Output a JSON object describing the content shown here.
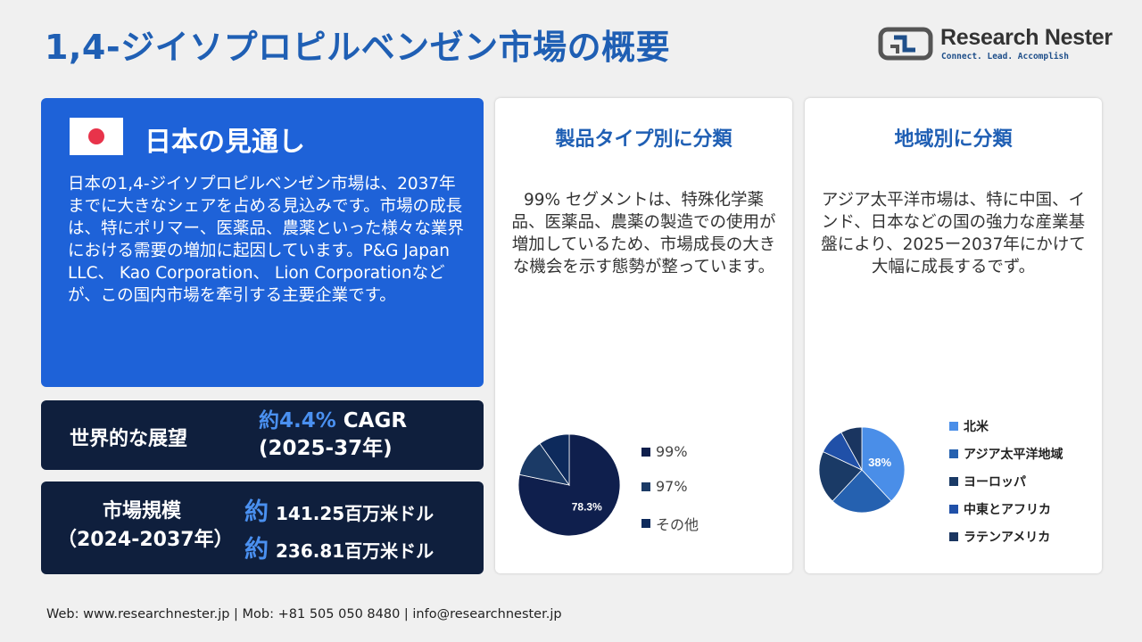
{
  "header": {
    "title": "1,4-ジイソプロピルベンゼン市場の概要",
    "logo_name": "Research Nester",
    "logo_tagline": "Connect. Lead. Accomplish"
  },
  "outlook": {
    "title": "日本の見通し",
    "text": "日本の1,4-ジイソプロピルベンゼン市場は、2037年までに大きなシェアを占める見込みです。市場の成長は、特にポリマー、医薬品、農薬といった様々な業界における需要の増加に起因しています。P&G Japan LLC、 Kao Corporation、 Lion Corporationなどが、この国内市場を牽引する主要企業です。"
  },
  "growth": {
    "label": "世界的な展望",
    "prefix": "約",
    "cagr": "4.4%",
    "cagr_suffix": " CAGR",
    "period": "(2025-37年)"
  },
  "market_size": {
    "label_line1": "市場規模",
    "label_line2": "（2024-2037年）",
    "approx": "約",
    "value_2024": "141.25百万米ドル",
    "value_2037": "236.81百万米ドル"
  },
  "segment": {
    "title": "製品タイプ別に分類",
    "text": "99% セグメントは、特殊化学薬品、医薬品、農薬の製造での使用が増加しているため、市場成長の大きな機会を示す態勢が整っています。"
  },
  "region": {
    "title": "地域別に分類",
    "text": "アジア太平洋市場は、特に中国、インド、日本などの国の強力な産業基盤により、2025ー2037年にかけて大幅に成長するでず。"
  },
  "chart_data": [
    {
      "type": "pie",
      "categories": [
        "99%",
        "97%",
        "その他"
      ],
      "values": [
        78.3,
        11.9,
        9.8
      ],
      "data_labels": [
        "78.3%",
        "",
        ""
      ],
      "colors": [
        "#0f1f4d",
        "#1b3a66",
        "#0d2a5c"
      ],
      "legend_position": "right"
    },
    {
      "type": "pie",
      "categories": [
        "北米",
        "アジア太平洋地域",
        "ヨーロッパ",
        "中東とアフリカ",
        "ラテンアメリカ"
      ],
      "values": [
        38,
        24,
        20,
        10,
        8
      ],
      "data_labels": [
        "38%",
        "",
        "",
        "",
        ""
      ],
      "colors": [
        "#4a8ee8",
        "#2561b0",
        "#1a3a66",
        "#2050a8",
        "#1a3560"
      ],
      "legend_position": "right"
    }
  ],
  "footer": {
    "text": "Web: www.researchnester.jp   | Mob: +81 505 050 8480 | info@researchnester.jp"
  }
}
